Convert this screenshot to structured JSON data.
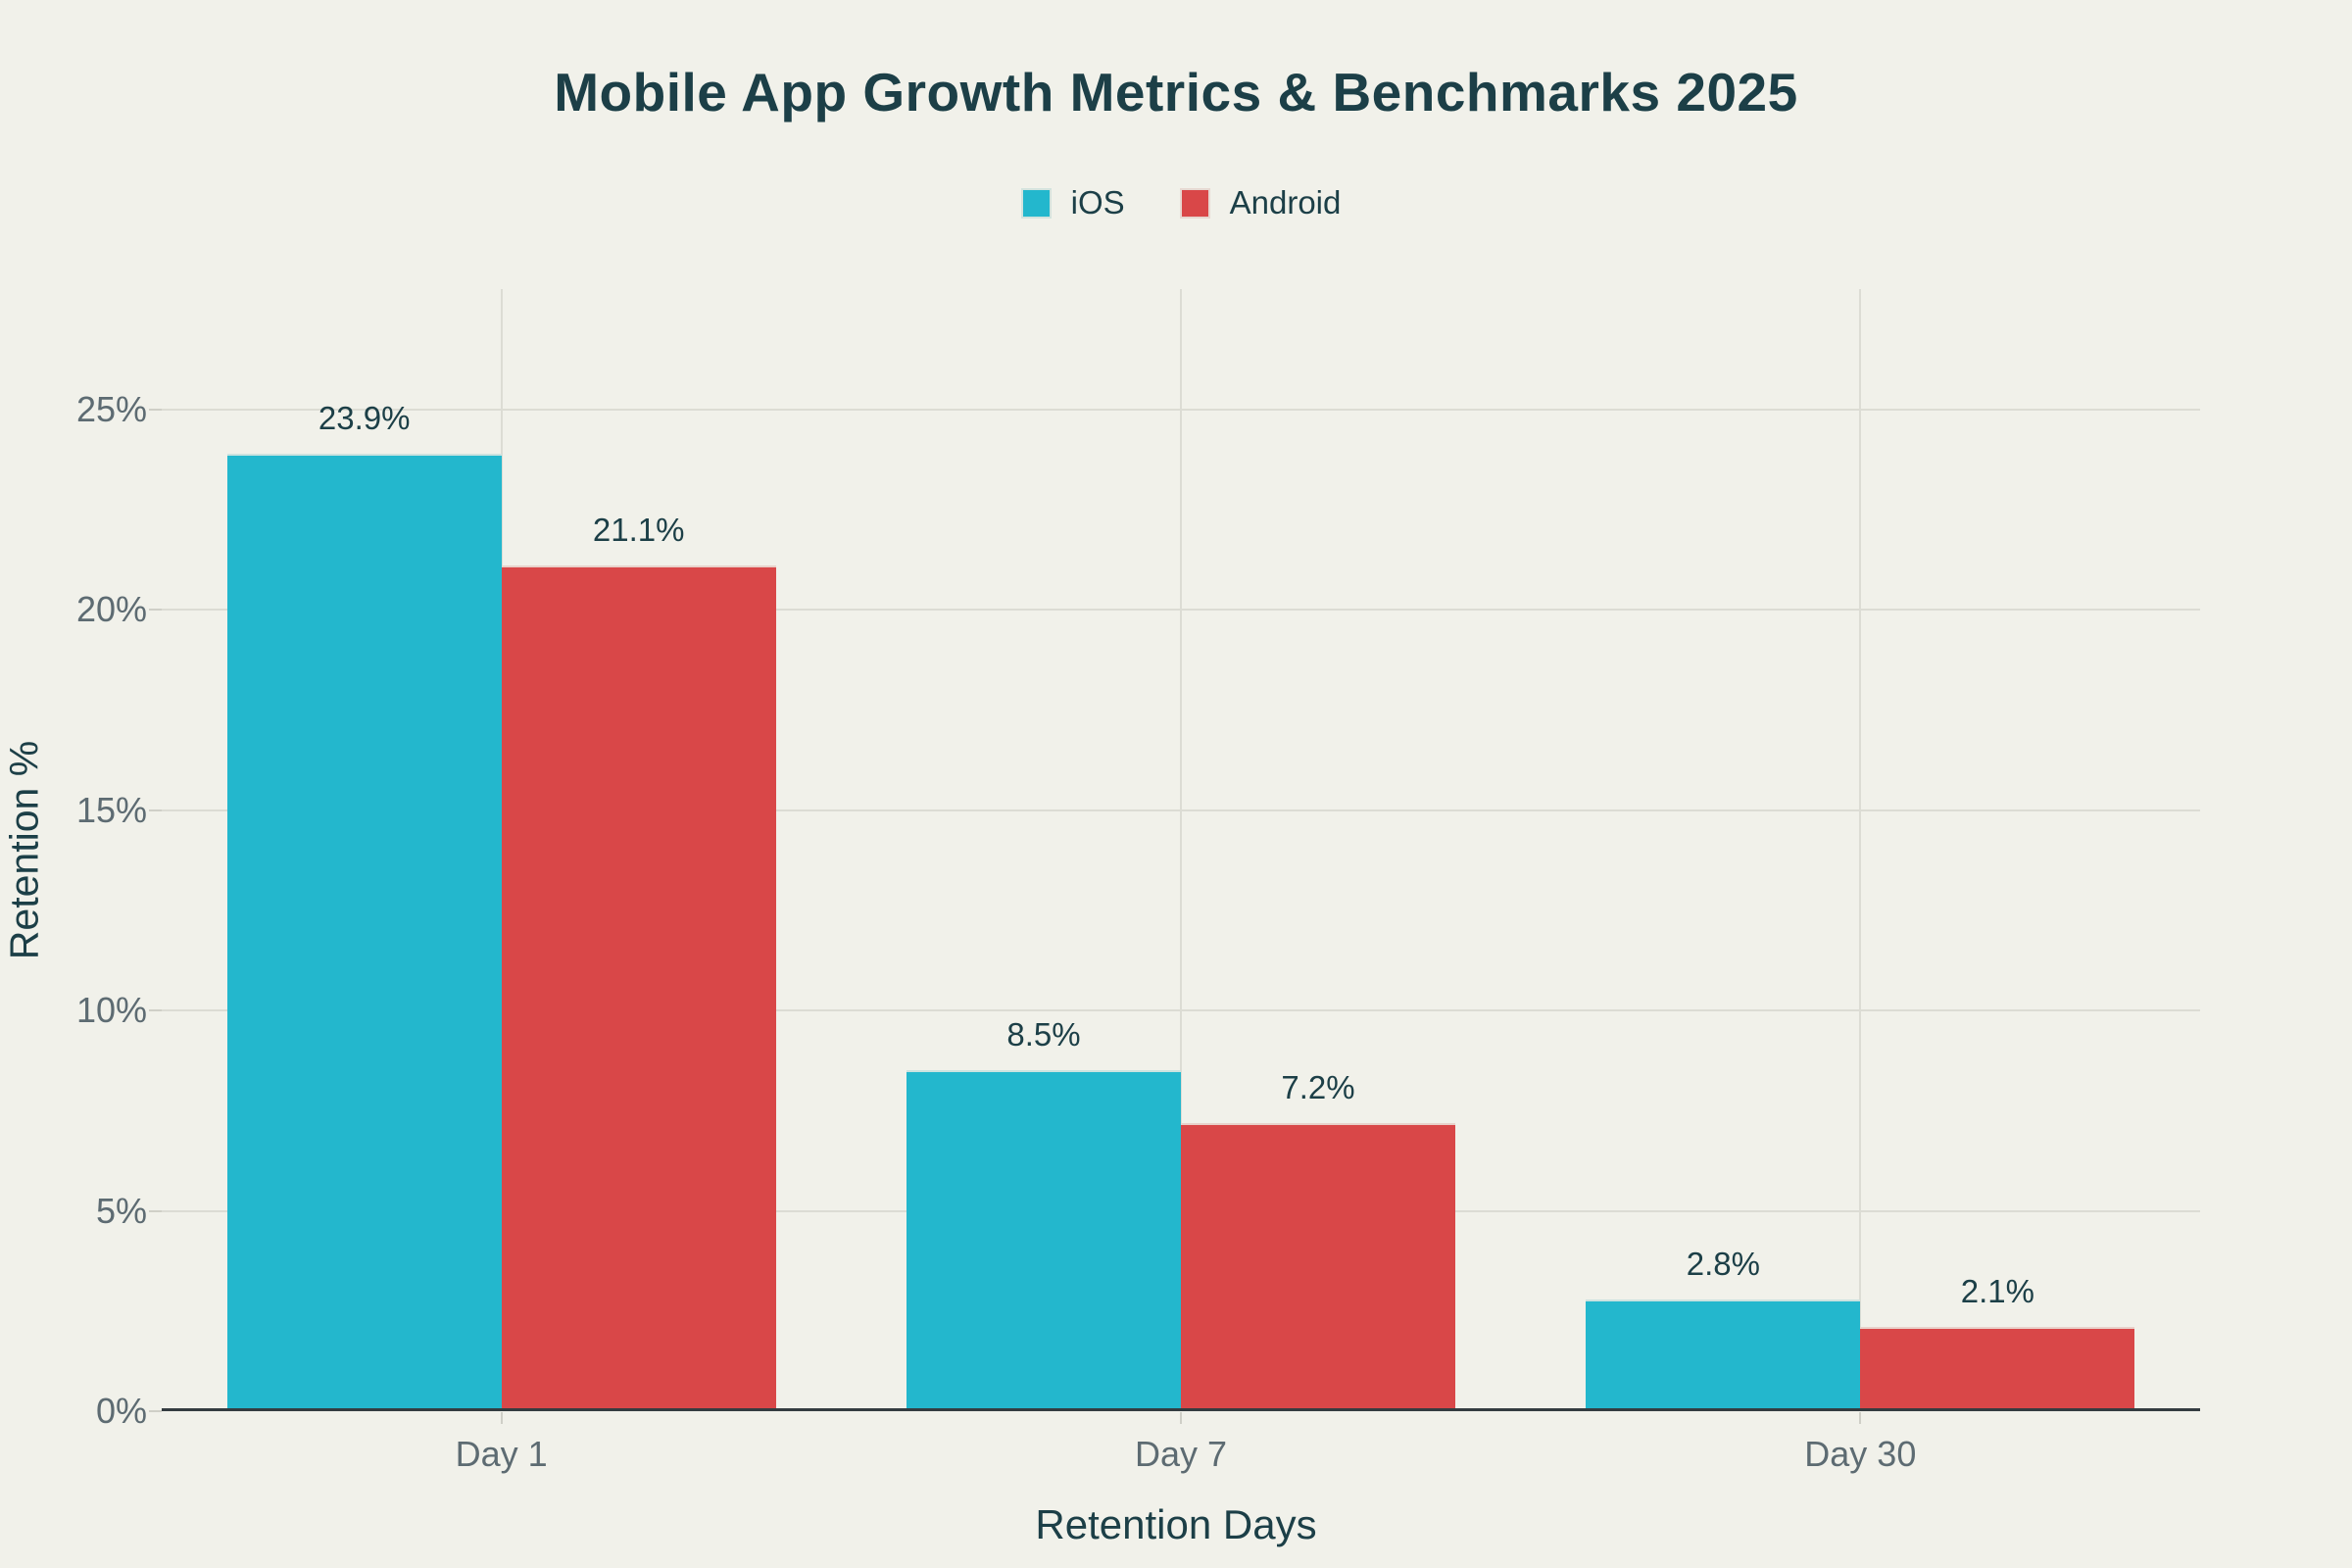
{
  "header": {
    "title": "Mobile App Growth Metrics & Benchmarks 2025"
  },
  "chart_data": {
    "type": "bar",
    "title": "Mobile App Growth Metrics & Benchmarks 2025",
    "categories": [
      "Day 1",
      "Day 7",
      "Day 30"
    ],
    "series": [
      {
        "name": "iOS",
        "color": "#23b7cd",
        "values": [
          23.9,
          8.5,
          2.8
        ],
        "labels": [
          "23.9%",
          "8.5%",
          "2.8%"
        ]
      },
      {
        "name": "Android",
        "color": "#d94748",
        "values": [
          21.1,
          7.2,
          2.1
        ],
        "labels": [
          "21.1%",
          "7.2%",
          "2.1%"
        ]
      }
    ],
    "xlabel": "Retention Days",
    "ylabel": "Retention %",
    "yticks": [
      {
        "value": 0,
        "label": "0%"
      },
      {
        "value": 5,
        "label": "5%"
      },
      {
        "value": 10,
        "label": "10%"
      },
      {
        "value": 15,
        "label": "15%"
      },
      {
        "value": 20,
        "label": "20%"
      },
      {
        "value": 25,
        "label": "25%"
      }
    ],
    "ylim": [
      0,
      28
    ],
    "grid": true,
    "legend_position": "top-center"
  },
  "colors": {
    "background": "#f1f1ea",
    "ios": "#23b7cd",
    "android": "#d94748",
    "dark_text": "#1c3f47",
    "muted_text": "#5d6b72",
    "gridline": "#dcdcd4",
    "tick": "#cfcfc7",
    "axis_line": "#343c40"
  }
}
